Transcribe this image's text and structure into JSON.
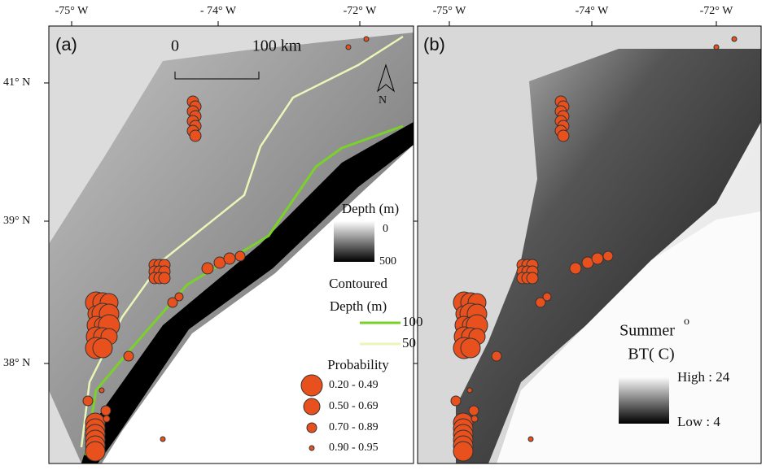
{
  "panel_labels": [
    "(a)",
    "(b)"
  ],
  "longitude_labels_a": [
    "-75° W",
    "- 74° W",
    "-72° W"
  ],
  "longitude_labels_b": [
    "-75° W",
    "-74° W",
    "-72° W"
  ],
  "latitude_labels": [
    "41° N",
    "39° N",
    "38° N"
  ],
  "scale_bar": {
    "start": "0",
    "end": "100 km"
  },
  "north": "N",
  "depth_legend": {
    "title": "Depth (m)",
    "min": "0",
    "max": "500"
  },
  "contour_legend": {
    "title_line1": "Contoured",
    "title_line2": "Depth (m)",
    "items": [
      "100",
      "50"
    ]
  },
  "probability_legend": {
    "title": "Probability",
    "items": [
      "0.20 - 0.49",
      "0.50 - 0.69",
      "0.70 - 0.89",
      "0.90 - 0.95"
    ]
  },
  "temperature_legend": {
    "title": "Summer",
    "superscript": "o",
    "subtitle": "BT( C)",
    "high": "High : 24",
    "low": "Low : 4"
  }
}
